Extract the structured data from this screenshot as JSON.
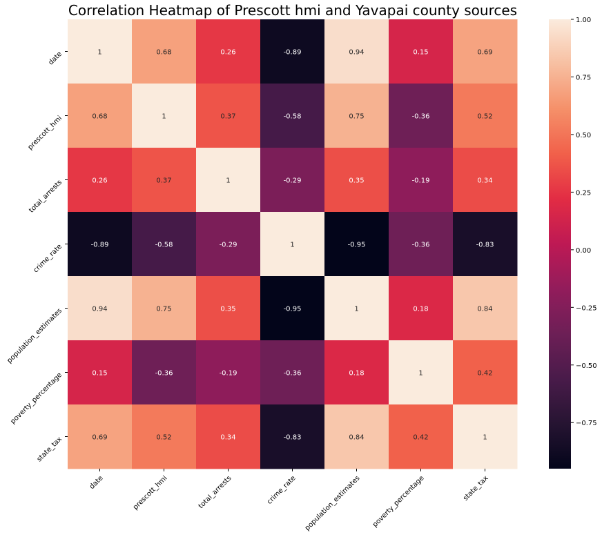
{
  "chart_data": {
    "type": "heatmap",
    "title": "Correlation Heatmap of Prescott hmi and Yavapai county sources",
    "variables": [
      "date",
      "prescott_hmi",
      "total_arrests",
      "crime_rate",
      "population_estimates",
      "poverty_percentage",
      "state_tax"
    ],
    "values": [
      [
        1,
        0.68,
        0.26,
        -0.89,
        0.94,
        0.15,
        0.69
      ],
      [
        0.68,
        1,
        0.37,
        -0.58,
        0.75,
        -0.36,
        0.52
      ],
      [
        0.26,
        0.37,
        1,
        -0.29,
        0.35,
        -0.19,
        0.34
      ],
      [
        -0.89,
        -0.58,
        -0.29,
        1,
        -0.95,
        -0.36,
        -0.83
      ],
      [
        0.94,
        0.75,
        0.35,
        -0.95,
        1,
        0.18,
        0.84
      ],
      [
        0.15,
        -0.36,
        -0.19,
        -0.36,
        0.18,
        1,
        0.42
      ],
      [
        0.69,
        0.52,
        0.34,
        -0.83,
        0.84,
        0.42,
        1
      ]
    ],
    "annotations": [
      [
        "1",
        "0.68",
        "0.26",
        "-0.89",
        "0.94",
        "0.15",
        "0.69"
      ],
      [
        "0.68",
        "1",
        "0.37",
        "-0.58",
        "0.75",
        "-0.36",
        "0.52"
      ],
      [
        "0.26",
        "0.37",
        "1",
        "-0.29",
        "0.35",
        "-0.19",
        "0.34"
      ],
      [
        "-0.89",
        "-0.58",
        "-0.29",
        "1",
        "-0.95",
        "-0.36",
        "-0.83"
      ],
      [
        "0.94",
        "0.75",
        "0.35",
        "-0.95",
        "1",
        "0.18",
        "0.84"
      ],
      [
        "0.15",
        "-0.36",
        "-0.19",
        "-0.36",
        "0.18",
        "1",
        "0.42"
      ],
      [
        "0.69",
        "0.52",
        "0.34",
        "-0.83",
        "0.84",
        "0.42",
        "1"
      ]
    ],
    "colorbar": {
      "range": [
        -0.95,
        1.0
      ],
      "ticks": [
        1.0,
        0.75,
        0.5,
        0.25,
        0.0,
        -0.25,
        -0.5,
        -0.75
      ],
      "tick_labels": [
        "1.00",
        "0.75",
        "0.50",
        "0.25",
        "0.00",
        "−0.25",
        "−0.50",
        "−0.75"
      ]
    },
    "colormap": "rocket",
    "grid": false,
    "legend": "colorbar-right"
  }
}
